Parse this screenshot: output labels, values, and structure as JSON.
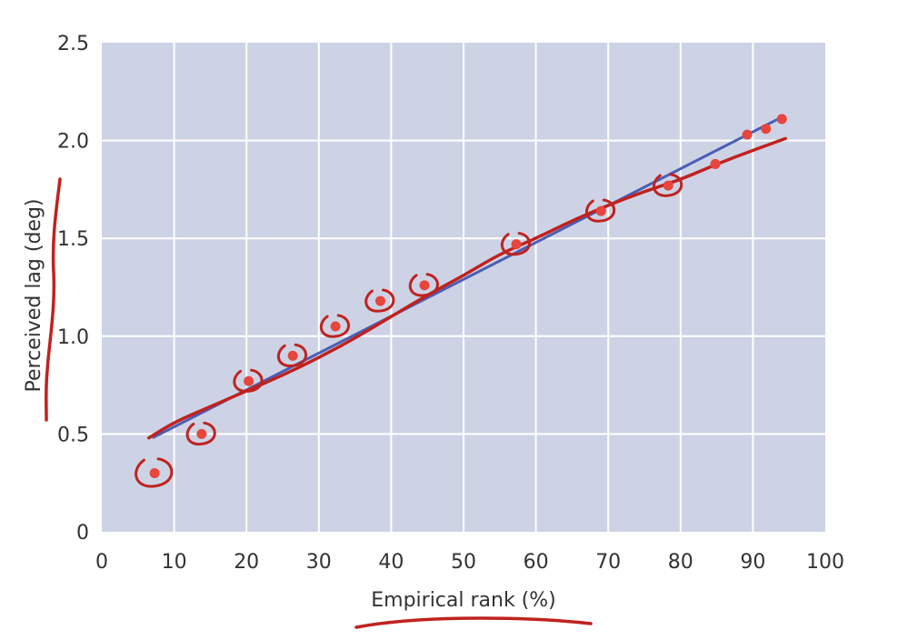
{
  "chart_data": {
    "type": "scatter",
    "xlabel": "Empirical rank (%)",
    "ylabel": "Perceived lag (deg)",
    "xlim": [
      0,
      100
    ],
    "ylim": [
      0,
      2.5
    ],
    "x_ticks": [
      0,
      10,
      20,
      30,
      40,
      50,
      60,
      70,
      80,
      90,
      100
    ],
    "y_ticks": [
      0,
      0.5,
      1.0,
      1.5,
      2.0,
      2.5
    ],
    "x_tick_labels": [
      "0",
      "10",
      "20",
      "30",
      "40",
      "50",
      "60",
      "70",
      "80",
      "90",
      "100"
    ],
    "y_tick_labels": [
      "0",
      "0.5",
      "1.0",
      "1.5",
      "2.0",
      "2.5"
    ],
    "grid": true,
    "background_color": "#cdd3e5",
    "series": [
      {
        "type": "scatter",
        "color": "#e8453c",
        "x": [
          7.3,
          13.8,
          20.3,
          26.4,
          32.3,
          38.5,
          44.6,
          57.3,
          69.0,
          78.3,
          84.8,
          89.2,
          91.8,
          94.0
        ],
        "y": [
          0.3,
          0.5,
          0.77,
          0.9,
          1.05,
          1.18,
          1.26,
          1.47,
          1.64,
          1.77,
          1.88,
          2.03,
          2.06,
          2.11
        ]
      },
      {
        "type": "line",
        "color": "#4a5eb5",
        "x": [
          7.0,
          94.0
        ],
        "y": [
          0.48,
          2.12
        ]
      }
    ],
    "annotations": {
      "hand_drawn_color": "#c0221f",
      "hand_curve": {
        "x": [
          6.5,
          10,
          15,
          20,
          25,
          30,
          35,
          40,
          45,
          50,
          55,
          60,
          65,
          70,
          75,
          80,
          85,
          90,
          94.5
        ],
        "y": [
          0.48,
          0.56,
          0.64,
          0.72,
          0.8,
          0.89,
          0.99,
          1.1,
          1.21,
          1.31,
          1.42,
          1.5,
          1.59,
          1.67,
          1.74,
          1.8,
          1.88,
          1.95,
          2.01
        ]
      },
      "circled_points_x": [
        7.3,
        13.8,
        20.3,
        26.4,
        32.3,
        38.5,
        44.6,
        57.3,
        69.0,
        78.3
      ]
    }
  }
}
